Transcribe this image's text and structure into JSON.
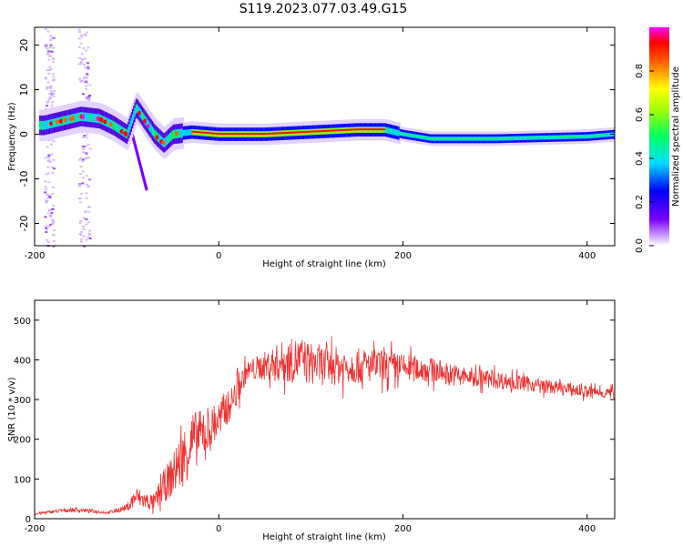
{
  "title": "S119.2023.077.03.49.G15",
  "chart_data": [
    {
      "type": "heatmap",
      "xlabel": "Height of straight line (km)",
      "ylabel": "Frequency (Hz)",
      "xlim": [
        -200,
        430
      ],
      "ylim": [
        -25,
        24
      ],
      "xticks": [
        -200,
        0,
        200,
        400
      ],
      "yticks": [
        -20,
        -10,
        0,
        10,
        20
      ],
      "colorbar": {
        "label": "Normalized spectral amplitude",
        "range": [
          0,
          1
        ],
        "ticks": [
          "0.0",
          "0.2",
          "0.4",
          "0.6",
          "0.8"
        ]
      },
      "ridge": {
        "x": [
          -190,
          -170,
          -150,
          -130,
          -115,
          -100,
          -90,
          -80,
          -70,
          -60,
          -50,
          -30,
          0,
          50,
          100,
          150,
          180,
          200,
          230,
          300,
          400,
          430
        ],
        "y": [
          2,
          3,
          4,
          3.5,
          2,
          0,
          6,
          3,
          0,
          -2,
          0,
          0.5,
          0,
          0,
          0.5,
          1,
          1,
          0,
          -1,
          -1,
          -0.5,
          0
        ]
      },
      "ridge_peak": {
        "x": [
          -30,
          180
        ],
        "level": 0.9
      },
      "diffuse_bands": {
        "x": [
          -190,
          -145
        ],
        "level": 0.2
      },
      "side_branch": {
        "x": [
          -95,
          -70
        ],
        "y_start": 0,
        "y_end": -12
      }
    },
    {
      "type": "line",
      "xlabel": "Height of straight line (km)",
      "ylabel": "SNR (10 * v/v)",
      "xlim": [
        -200,
        430
      ],
      "ylim": [
        0,
        550
      ],
      "xticks": [
        -200,
        0,
        200,
        400
      ],
      "yticks": [
        0,
        100,
        200,
        300,
        400,
        500
      ],
      "color": "#f03232",
      "x": [
        -200,
        -180,
        -160,
        -140,
        -120,
        -100,
        -90,
        -80,
        -70,
        -60,
        -50,
        -40,
        -30,
        -20,
        -10,
        0,
        10,
        20,
        30,
        50,
        70,
        90,
        100,
        120,
        150,
        180,
        200,
        230,
        260,
        300,
        350,
        400,
        430
      ],
      "y": [
        12,
        18,
        22,
        20,
        15,
        28,
        55,
        45,
        40,
        80,
        110,
        150,
        190,
        210,
        220,
        250,
        280,
        320,
        370,
        385,
        395,
        400,
        390,
        385,
        385,
        385,
        380,
        375,
        360,
        350,
        335,
        320,
        315
      ],
      "noise": [
        3,
        5,
        6,
        5,
        4,
        10,
        30,
        25,
        25,
        45,
        60,
        80,
        90,
        70,
        60,
        55,
        45,
        40,
        30,
        40,
        60,
        65,
        60,
        55,
        50,
        45,
        40,
        35,
        30,
        25,
        20,
        18,
        15
      ]
    }
  ]
}
